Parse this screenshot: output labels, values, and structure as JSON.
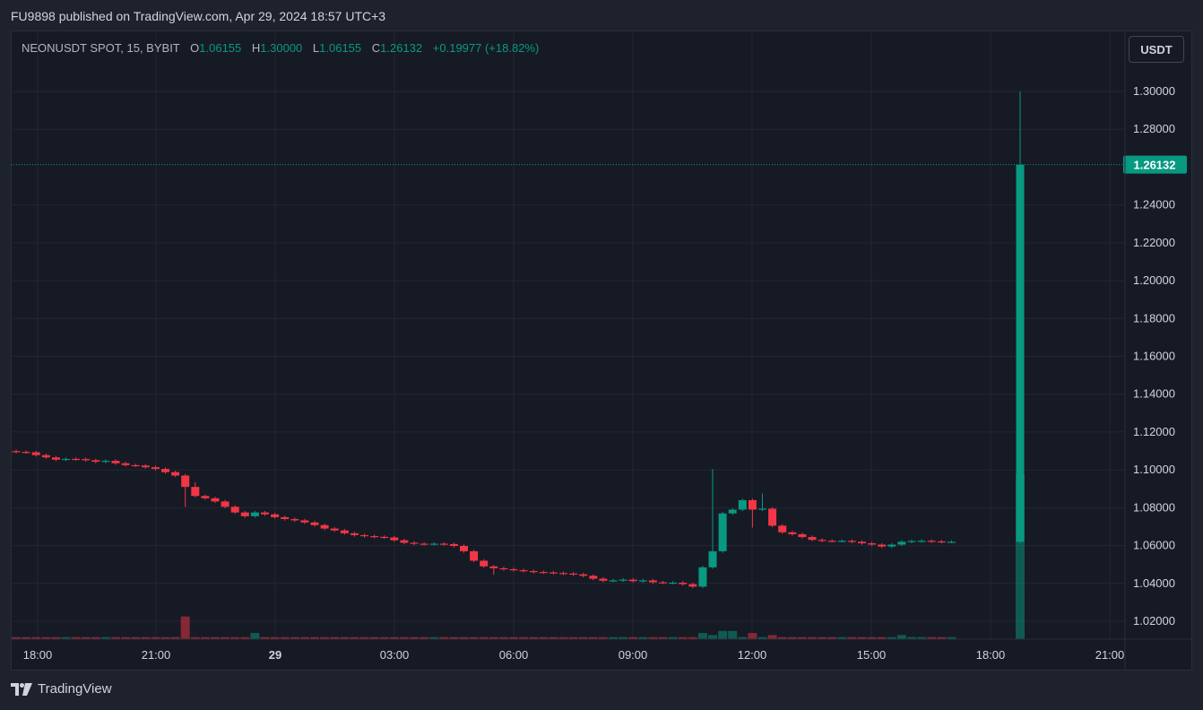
{
  "header": {
    "published_line": "FU9898 published on TradingView.com, Apr 29, 2024 18:57 UTC+3"
  },
  "legend": {
    "symbol": "NEONUSDT SPOT, 15, BYBIT",
    "open_label": "O",
    "open": "1.06155",
    "high_label": "H",
    "high": "1.30000",
    "low_label": "L",
    "low": "1.06155",
    "close_label": "C",
    "close": "1.26132",
    "change": "+0.19977 (+18.82%)"
  },
  "currency_button": "USDT",
  "footer": {
    "brand": "TradingView"
  },
  "colors": {
    "up": "#089981",
    "down": "#f23645",
    "grid": "#232734",
    "background": "#161a25",
    "axis_text": "#d1d4dc"
  },
  "chart_data": {
    "type": "candlestick",
    "y_ticks": [
      "1.30000",
      "1.28000",
      "1.24000",
      "1.22000",
      "1.20000",
      "1.18000",
      "1.16000",
      "1.14000",
      "1.12000",
      "1.10000",
      "1.08000",
      "1.06000",
      "1.04000",
      "1.02000"
    ],
    "ylim": [
      1.0112,
      1.3007
    ],
    "x_ticks": [
      "18:00",
      "21:00",
      "29",
      "03:00",
      "06:00",
      "09:00",
      "12:00",
      "15:00",
      "18:00",
      "21:00"
    ],
    "last_price": "1.26132",
    "close_series": [
      1.1095,
      1.1093,
      1.1078,
      1.1066,
      1.1054,
      1.1058,
      1.1057,
      1.1051,
      1.1043,
      1.1048,
      1.1035,
      1.1025,
      1.1023,
      1.1014,
      1.1005,
      1.0988,
      1.097,
      1.091,
      1.0862,
      1.085,
      1.0833,
      1.0805,
      1.0775,
      1.0755,
      1.0775,
      1.0765,
      1.075,
      1.074,
      1.0733,
      1.0722,
      1.0708,
      1.069,
      1.068,
      1.0665,
      1.0655,
      1.065,
      1.0646,
      1.0643,
      1.0628,
      1.0615,
      1.061,
      1.0608,
      1.061,
      1.0608,
      1.0598,
      1.057,
      1.052,
      1.049,
      1.048,
      1.0475,
      1.047,
      1.0465,
      1.046,
      1.0458,
      1.0455,
      1.0452,
      1.0448,
      1.044,
      1.0425,
      1.0414,
      1.0416,
      1.042,
      1.0412,
      1.0416,
      1.0406,
      1.0404,
      1.0404,
      1.0396,
      1.0383,
      1.0485,
      1.057,
      1.077,
      1.079,
      1.084,
      1.079,
      1.0795,
      1.0705,
      1.067,
      1.066,
      1.0645,
      1.063,
      1.0625,
      1.0624,
      1.0625,
      1.062,
      1.0612,
      1.0605,
      1.0595,
      1.0605,
      1.062,
      1.0624,
      1.0625,
      1.0622,
      1.062,
      1.062,
      1.2613
    ],
    "volume_series": [
      1,
      1,
      1,
      1,
      1,
      1,
      1,
      1,
      1,
      1,
      1,
      1,
      1,
      1,
      1,
      1,
      1,
      11,
      1,
      1,
      1,
      1,
      1,
      1,
      3,
      1,
      1,
      1,
      1,
      1,
      1,
      1,
      1,
      1,
      1,
      1,
      1,
      1,
      1,
      1,
      1,
      1,
      1,
      1,
      1,
      1,
      1,
      1,
      1,
      1,
      1,
      1,
      1,
      1,
      1,
      1,
      1,
      1,
      1,
      1,
      1,
      1,
      1,
      1,
      1,
      1,
      1,
      1,
      1,
      3,
      2,
      4,
      4,
      1,
      3,
      1,
      2,
      1,
      1,
      1,
      1,
      1,
      1,
      1,
      1,
      1,
      1,
      1,
      1,
      2,
      1,
      1,
      1,
      1,
      1,
      80
    ]
  }
}
